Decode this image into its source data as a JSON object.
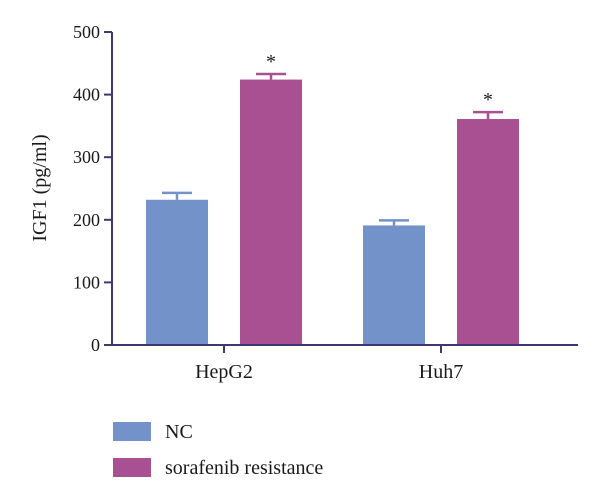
{
  "chart_data": {
    "type": "bar",
    "categories": [
      "HepG2",
      "Huh7"
    ],
    "series": [
      {
        "name": "NC",
        "color": "#7292c9",
        "values": [
          232,
          191
        ],
        "errors": [
          11,
          8
        ]
      },
      {
        "name": "sorafenib resistance",
        "color": "#a95092",
        "values": [
          424,
          361
        ],
        "errors": [
          9,
          11
        ]
      }
    ],
    "significance": [
      {
        "category": "HepG2",
        "series": "sorafenib resistance",
        "label": "*"
      },
      {
        "category": "Huh7",
        "series": "sorafenib resistance",
        "label": "*"
      }
    ],
    "ylabel": "IGF1 (pg/ml)",
    "xlabel": "",
    "ylim": [
      0,
      500
    ],
    "yticks": [
      0,
      100,
      200,
      300,
      400,
      500
    ],
    "grid": false,
    "legend_position": "bottom-left",
    "axis_color": "#3d3870"
  }
}
